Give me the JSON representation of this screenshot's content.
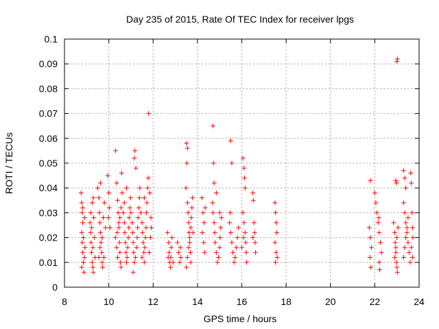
{
  "chart_data": {
    "type": "scatter",
    "title": "Day 235 of 2015, Rate Of TEC Index for receiver lpgs",
    "xlabel": "GPS time / hours",
    "ylabel": "ROTI / TECUs",
    "xlim": [
      8,
      24
    ],
    "ylim": [
      0,
      0.1
    ],
    "grid": true,
    "marker": "+",
    "color": "#ff0000",
    "x_ticks": [
      8,
      10,
      12,
      14,
      16,
      18,
      20,
      22,
      24
    ],
    "y_ticks": [
      0,
      0.01,
      0.02,
      0.03,
      0.04,
      0.05,
      0.06,
      0.07,
      0.08,
      0.09,
      0.1
    ],
    "x_tick_labels": [
      "8",
      "10",
      "12",
      "14",
      "16",
      "18",
      "20",
      "22",
      "24"
    ],
    "y_tick_labels": [
      "0",
      "0.01",
      "0.02",
      "0.03",
      "0.04",
      "0.05",
      "0.06",
      "0.07",
      "0.08",
      "0.09",
      "0.1"
    ],
    "series": [
      {
        "name": "ROTI",
        "points": [
          [
            8.75,
            0.038
          ],
          [
            8.78,
            0.034
          ],
          [
            8.8,
            0.03
          ],
          [
            8.82,
            0.026
          ],
          [
            8.78,
            0.022
          ],
          [
            8.8,
            0.018
          ],
          [
            8.82,
            0.014
          ],
          [
            8.85,
            0.01
          ],
          [
            8.78,
            0.008
          ],
          [
            8.88,
            0.006
          ],
          [
            8.9,
            0.012
          ],
          [
            8.92,
            0.016
          ],
          [
            8.85,
            0.02
          ],
          [
            8.9,
            0.028
          ],
          [
            8.82,
            0.032
          ],
          [
            9.15,
            0.026
          ],
          [
            9.18,
            0.022
          ],
          [
            9.2,
            0.018
          ],
          [
            9.22,
            0.014
          ],
          [
            9.25,
            0.01
          ],
          [
            9.28,
            0.008
          ],
          [
            9.3,
            0.006
          ],
          [
            9.18,
            0.03
          ],
          [
            9.25,
            0.034
          ],
          [
            9.3,
            0.036
          ],
          [
            9.32,
            0.028
          ],
          [
            9.35,
            0.02
          ],
          [
            9.38,
            0.012
          ],
          [
            9.28,
            0.016
          ],
          [
            9.22,
            0.024
          ],
          [
            9.5,
            0.04
          ],
          [
            9.55,
            0.036
          ],
          [
            9.58,
            0.03
          ],
          [
            9.6,
            0.026
          ],
          [
            9.62,
            0.022
          ],
          [
            9.65,
            0.018
          ],
          [
            9.68,
            0.014
          ],
          [
            9.7,
            0.01
          ],
          [
            9.72,
            0.008
          ],
          [
            9.55,
            0.012
          ],
          [
            9.6,
            0.016
          ],
          [
            9.7,
            0.02
          ],
          [
            9.75,
            0.028
          ],
          [
            9.8,
            0.034
          ],
          [
            9.85,
            0.024
          ],
          [
            9.78,
            0.012
          ],
          [
            9.62,
            0.042
          ],
          [
            9.95,
            0.045
          ],
          [
            10.0,
            0.038
          ],
          [
            10.02,
            0.032
          ],
          [
            9.98,
            0.028
          ],
          [
            10.05,
            0.024
          ],
          [
            10.3,
            0.055
          ],
          [
            10.35,
            0.042
          ],
          [
            10.4,
            0.035
          ],
          [
            10.42,
            0.03
          ],
          [
            10.45,
            0.026
          ],
          [
            10.38,
            0.022
          ],
          [
            10.48,
            0.018
          ],
          [
            10.5,
            0.014
          ],
          [
            10.52,
            0.01
          ],
          [
            10.55,
            0.008
          ],
          [
            10.4,
            0.012
          ],
          [
            10.35,
            0.016
          ],
          [
            10.3,
            0.02
          ],
          [
            10.45,
            0.024
          ],
          [
            10.5,
            0.028
          ],
          [
            10.55,
            0.032
          ],
          [
            10.6,
            0.038
          ],
          [
            10.58,
            0.046
          ],
          [
            10.65,
            0.03
          ],
          [
            10.7,
            0.026
          ],
          [
            10.72,
            0.022
          ],
          [
            10.75,
            0.018
          ],
          [
            10.78,
            0.014
          ],
          [
            10.8,
            0.01
          ],
          [
            10.82,
            0.012
          ],
          [
            10.85,
            0.016
          ],
          [
            10.88,
            0.02
          ],
          [
            10.9,
            0.024
          ],
          [
            10.92,
            0.028
          ],
          [
            10.95,
            0.032
          ],
          [
            10.98,
            0.036
          ],
          [
            10.7,
            0.034
          ],
          [
            10.8,
            0.04
          ],
          [
            11.0,
            0.03
          ],
          [
            11.05,
            0.026
          ],
          [
            11.08,
            0.022
          ],
          [
            11.1,
            0.018
          ],
          [
            11.12,
            0.014
          ],
          [
            11.15,
            0.01
          ],
          [
            11.2,
            0.012
          ],
          [
            11.25,
            0.016
          ],
          [
            11.28,
            0.02
          ],
          [
            11.3,
            0.024
          ],
          [
            11.32,
            0.028
          ],
          [
            11.35,
            0.032
          ],
          [
            11.38,
            0.036
          ],
          [
            11.4,
            0.04
          ],
          [
            11.15,
            0.052
          ],
          [
            11.18,
            0.055
          ],
          [
            11.22,
            0.048
          ],
          [
            11.1,
            0.006
          ],
          [
            11.45,
            0.03
          ],
          [
            11.5,
            0.026
          ],
          [
            11.52,
            0.022
          ],
          [
            11.55,
            0.018
          ],
          [
            11.58,
            0.014
          ],
          [
            11.6,
            0.01
          ],
          [
            11.62,
            0.016
          ],
          [
            11.65,
            0.02
          ],
          [
            11.68,
            0.024
          ],
          [
            11.7,
            0.03
          ],
          [
            11.72,
            0.034
          ],
          [
            11.75,
            0.04
          ],
          [
            11.78,
            0.044
          ],
          [
            11.6,
            0.036
          ],
          [
            11.5,
            0.012
          ],
          [
            11.8,
            0.07
          ],
          [
            11.85,
            0.038
          ],
          [
            11.9,
            0.028
          ],
          [
            11.88,
            0.02
          ],
          [
            11.82,
            0.014
          ],
          [
            11.92,
            0.024
          ],
          [
            12.65,
            0.022
          ],
          [
            12.7,
            0.018
          ],
          [
            12.72,
            0.014
          ],
          [
            12.75,
            0.01
          ],
          [
            12.78,
            0.008
          ],
          [
            12.8,
            0.012
          ],
          [
            12.82,
            0.016
          ],
          [
            12.85,
            0.02
          ],
          [
            12.68,
            0.012
          ],
          [
            12.9,
            0.01
          ],
          [
            13.1,
            0.018
          ],
          [
            13.15,
            0.014
          ],
          [
            13.2,
            0.01
          ],
          [
            13.22,
            0.016
          ],
          [
            13.25,
            0.012
          ],
          [
            13.5,
            0.058
          ],
          [
            13.55,
            0.056
          ],
          [
            13.52,
            0.05
          ],
          [
            13.48,
            0.04
          ],
          [
            13.55,
            0.034
          ],
          [
            13.58,
            0.03
          ],
          [
            13.6,
            0.026
          ],
          [
            13.62,
            0.022
          ],
          [
            13.65,
            0.018
          ],
          [
            13.68,
            0.014
          ],
          [
            13.7,
            0.01
          ],
          [
            13.5,
            0.008
          ],
          [
            13.55,
            0.012
          ],
          [
            13.6,
            0.016
          ],
          [
            13.65,
            0.02
          ],
          [
            13.7,
            0.024
          ],
          [
            13.72,
            0.028
          ],
          [
            13.75,
            0.032
          ],
          [
            13.78,
            0.036
          ],
          [
            13.8,
            0.022
          ],
          [
            14.2,
            0.036
          ],
          [
            14.25,
            0.03
          ],
          [
            14.3,
            0.026
          ],
          [
            14.22,
            0.022
          ],
          [
            14.28,
            0.018
          ],
          [
            14.32,
            0.014
          ],
          [
            14.35,
            0.032
          ],
          [
            14.7,
            0.065
          ],
          [
            14.72,
            0.05
          ],
          [
            14.75,
            0.042
          ],
          [
            14.68,
            0.034
          ],
          [
            14.7,
            0.03
          ],
          [
            14.75,
            0.026
          ],
          [
            14.78,
            0.022
          ],
          [
            14.8,
            0.018
          ],
          [
            14.85,
            0.014
          ],
          [
            14.9,
            0.01
          ],
          [
            14.95,
            0.012
          ],
          [
            15.0,
            0.016
          ],
          [
            15.02,
            0.02
          ],
          [
            15.05,
            0.024
          ],
          [
            15.08,
            0.028
          ],
          [
            14.85,
            0.038
          ],
          [
            15.0,
            0.03
          ],
          [
            15.5,
            0.059
          ],
          [
            15.55,
            0.05
          ],
          [
            15.45,
            0.026
          ],
          [
            15.5,
            0.022
          ],
          [
            15.55,
            0.018
          ],
          [
            15.6,
            0.014
          ],
          [
            15.65,
            0.01
          ],
          [
            15.7,
            0.012
          ],
          [
            15.75,
            0.016
          ],
          [
            15.8,
            0.02
          ],
          [
            15.85,
            0.024
          ],
          [
            15.48,
            0.03
          ],
          [
            16.05,
            0.052
          ],
          [
            16.1,
            0.048
          ],
          [
            16.12,
            0.044
          ],
          [
            16.15,
            0.04
          ],
          [
            16.05,
            0.03
          ],
          [
            16.1,
            0.026
          ],
          [
            16.15,
            0.022
          ],
          [
            16.18,
            0.018
          ],
          [
            16.2,
            0.014
          ],
          [
            16.22,
            0.01
          ],
          [
            16.0,
            0.016
          ],
          [
            16.08,
            0.02
          ],
          [
            16.5,
            0.038
          ],
          [
            16.52,
            0.035
          ],
          [
            16.55,
            0.026
          ],
          [
            16.58,
            0.022
          ],
          [
            16.6,
            0.018
          ],
          [
            16.62,
            0.014
          ],
          [
            16.5,
            0.02
          ],
          [
            17.5,
            0.034
          ],
          [
            17.52,
            0.03
          ],
          [
            17.55,
            0.026
          ],
          [
            17.58,
            0.022
          ],
          [
            17.5,
            0.018
          ],
          [
            17.55,
            0.014
          ],
          [
            17.6,
            0.012
          ],
          [
            17.52,
            0.01
          ],
          [
            21.8,
            0.043
          ],
          [
            21.75,
            0.024
          ],
          [
            21.8,
            0.02
          ],
          [
            21.85,
            0.016
          ],
          [
            21.78,
            0.012
          ],
          [
            21.82,
            0.008
          ],
          [
            22.0,
            0.038
          ],
          [
            22.05,
            0.034
          ],
          [
            22.1,
            0.03
          ],
          [
            22.15,
            0.026
          ],
          [
            22.2,
            0.022
          ],
          [
            22.25,
            0.018
          ],
          [
            22.3,
            0.014
          ],
          [
            22.2,
            0.01
          ],
          [
            22.22,
            0.007
          ],
          [
            22.18,
            0.028
          ],
          [
            22.85,
            0.026
          ],
          [
            22.9,
            0.022
          ],
          [
            22.92,
            0.018
          ],
          [
            22.95,
            0.014
          ],
          [
            22.98,
            0.01
          ],
          [
            23.0,
            0.008
          ],
          [
            23.02,
            0.006
          ],
          [
            22.9,
            0.012
          ],
          [
            22.95,
            0.016
          ],
          [
            23.0,
            0.02
          ],
          [
            23.05,
            0.024
          ],
          [
            22.95,
            0.043
          ],
          [
            22.98,
            0.042
          ],
          [
            23.0,
            0.091
          ],
          [
            23.02,
            0.092
          ],
          [
            23.3,
            0.047
          ],
          [
            23.35,
            0.044
          ],
          [
            23.4,
            0.04
          ],
          [
            23.3,
            0.034
          ],
          [
            23.35,
            0.03
          ],
          [
            23.4,
            0.026
          ],
          [
            23.45,
            0.022
          ],
          [
            23.5,
            0.018
          ],
          [
            23.55,
            0.014
          ],
          [
            23.6,
            0.01
          ],
          [
            23.3,
            0.012
          ],
          [
            23.35,
            0.016
          ],
          [
            23.4,
            0.02
          ],
          [
            23.45,
            0.024
          ],
          [
            23.5,
            0.028
          ],
          [
            23.62,
            0.046
          ],
          [
            23.65,
            0.042
          ],
          [
            23.68,
            0.03
          ],
          [
            23.7,
            0.024
          ],
          [
            23.72,
            0.02
          ],
          [
            23.65,
            0.016
          ],
          [
            23.7,
            0.012
          ]
        ]
      }
    ]
  }
}
